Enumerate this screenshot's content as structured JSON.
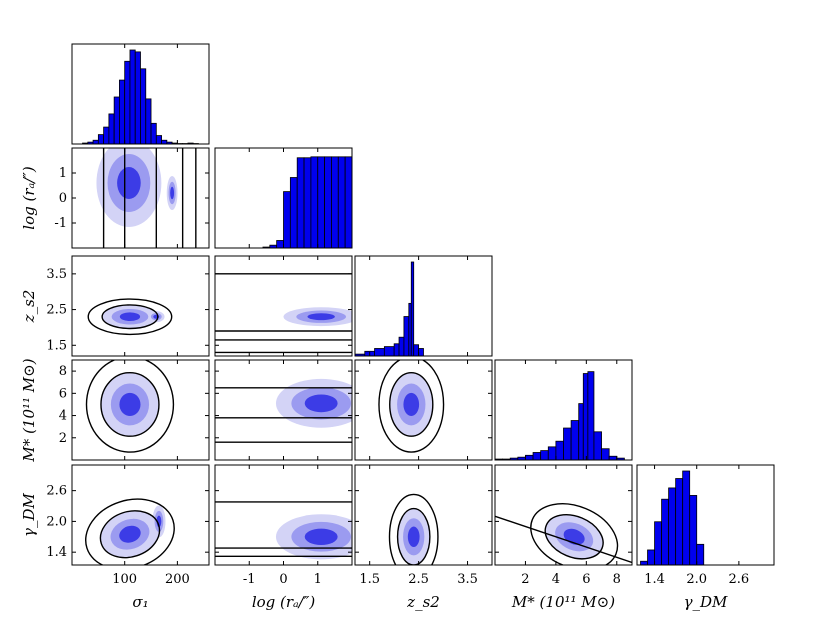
{
  "chart_data": {
    "type": "corner",
    "parameters": [
      {
        "key": "sigma1",
        "label": "σ₁",
        "range": [
          0,
          260
        ],
        "ticks": [
          100,
          200
        ],
        "tick_labels": [
          "100",
          "200"
        ]
      },
      {
        "key": "log_ra",
        "label": "log (rₐ/″)",
        "range": [
          -2.0,
          2.0
        ],
        "ticks": [
          -1,
          0,
          1
        ],
        "tick_labels": [
          "-1",
          "0",
          "1"
        ]
      },
      {
        "key": "zs2",
        "label": "z_s2",
        "range": [
          1.2,
          4.0
        ],
        "ticks": [
          1.5,
          2.5,
          3.5
        ],
        "tick_labels": [
          "1.5",
          "2.5",
          "3.5"
        ]
      },
      {
        "key": "Mstar",
        "label": "M* (10¹¹ M⊙)",
        "range": [
          0,
          9
        ],
        "ticks": [
          2,
          4,
          6,
          8
        ],
        "tick_labels": [
          "2",
          "4",
          "6",
          "8"
        ]
      },
      {
        "key": "gammaDM",
        "label": "γ_DM",
        "range": [
          1.15,
          3.1
        ],
        "ticks": [
          1.4,
          2.0,
          2.6
        ],
        "tick_labels": [
          "1.4",
          "2.0",
          "2.6"
        ]
      }
    ],
    "row_tick_labels": {
      "log_ra": [
        "1",
        "0",
        "-1"
      ],
      "zs2": [
        "3.5",
        "2.5",
        "1.5"
      ],
      "Mstar": [
        "8",
        "6",
        "4",
        "2"
      ],
      "gammaDM": [
        "2.6",
        "2.0",
        "1.4"
      ]
    },
    "x_axis_labels": [
      "σ₁",
      "log (rₐ/″)",
      "z_s2",
      "M* (10¹¹ M⊙)",
      "γ_DM"
    ],
    "y_axis_labels": [
      "log (rₐ/″)",
      "z_s2",
      "M* (10¹¹ M⊙)",
      "γ_DM"
    ],
    "histograms": [
      {
        "param": "sigma1",
        "bin_edges": [
          20,
          30,
          40,
          50,
          60,
          70,
          80,
          90,
          100,
          110,
          120,
          130,
          140,
          150,
          160,
          170,
          180,
          190,
          200,
          210,
          220,
          230,
          240
        ],
        "counts": [
          0.01,
          0.02,
          0.04,
          0.1,
          0.18,
          0.32,
          0.5,
          0.68,
          0.88,
          1.0,
          0.98,
          0.8,
          0.48,
          0.22,
          0.09,
          0.04,
          0.02,
          0.01,
          0.005,
          0.005,
          0.01,
          0.005
        ]
      },
      {
        "param": "log_ra",
        "bin_edges": [
          -0.6,
          -0.4,
          -0.2,
          0.0,
          0.2,
          0.4,
          0.6,
          0.8,
          1.0,
          1.2,
          1.4,
          1.6,
          1.8,
          2.0
        ],
        "counts": [
          0.01,
          0.03,
          0.08,
          0.6,
          0.75,
          0.96,
          0.96,
          0.97,
          0.97,
          0.97,
          0.97,
          0.97,
          0.97
        ]
      },
      {
        "param": "zs2",
        "bin_edges": [
          1.2,
          1.4,
          1.6,
          1.8,
          2.0,
          2.1,
          2.2,
          2.3,
          2.35,
          2.4,
          2.5,
          2.6
        ],
        "counts": [
          0.02,
          0.05,
          0.08,
          0.1,
          0.13,
          0.2,
          0.42,
          0.56,
          1.0,
          0.12,
          0.08
        ]
      },
      {
        "param": "Mstar",
        "bin_edges": [
          0.0,
          0.5,
          1.0,
          1.5,
          2.0,
          2.5,
          3.0,
          3.5,
          4.0,
          4.5,
          5.0,
          5.5,
          5.8,
          6.1,
          6.5,
          7.0,
          7.5,
          8.0,
          8.5
        ],
        "counts": [
          0.01,
          0.01,
          0.02,
          0.03,
          0.05,
          0.08,
          0.1,
          0.14,
          0.2,
          0.34,
          0.42,
          0.6,
          0.92,
          0.94,
          0.3,
          0.12,
          0.04,
          0.02
        ]
      },
      {
        "param": "gammaDM",
        "bin_edges": [
          1.2,
          1.3,
          1.4,
          1.5,
          1.6,
          1.7,
          1.8,
          1.9,
          2.0,
          2.1
        ],
        "counts": [
          0.04,
          0.16,
          0.46,
          0.7,
          0.82,
          0.92,
          1.0,
          0.74,
          0.22
        ]
      }
    ],
    "pairs": [
      {
        "x": "sigma1",
        "y": "log_ra",
        "centers": [
          {
            "x": 108,
            "y": 0.6,
            "sx": 28,
            "sy": 0.8,
            "rho": 0,
            "w": 1
          },
          {
            "x": 190,
            "y": 0.2,
            "sx": 6,
            "sy": 0.4,
            "rho": 0,
            "w": 0.6
          }
        ],
        "lines": [
          [
            [
              60,
              -2
            ],
            [
              60,
              2
            ]
          ],
          [
            [
              100,
              -2
            ],
            [
              100,
              2
            ]
          ],
          [
            [
              160,
              -2
            ],
            [
              160,
              2
            ]
          ],
          [
            [
              210,
              -2
            ],
            [
              210,
              2
            ]
          ],
          [
            [
              235,
              -2
            ],
            [
              235,
              2
            ]
          ]
        ]
      },
      {
        "x": "log_ra",
        "y": "zs2",
        "centers": [
          {
            "x": 1.1,
            "y": 2.3,
            "sx": 0.5,
            "sy": 0.12,
            "rho": 0,
            "w": 1
          }
        ],
        "lines": [
          [
            [
              -2,
              3.5
            ],
            [
              2,
              3.5
            ]
          ],
          [
            [
              -2,
              1.9
            ],
            [
              2,
              1.9
            ]
          ],
          [
            [
              -2,
              1.65
            ],
            [
              2,
              1.65
            ]
          ],
          [
            [
              -2,
              1.3
            ],
            [
              2,
              1.3
            ]
          ]
        ]
      },
      {
        "x": "sigma1",
        "y": "zs2",
        "centers": [
          {
            "x": 110,
            "y": 2.3,
            "sx": 24,
            "sy": 0.15,
            "rho": 0,
            "w": 1
          },
          {
            "x": 160,
            "y": 2.3,
            "sx": 10,
            "sy": 0.1,
            "rho": 0,
            "w": 0.5
          }
        ],
        "lines": []
      },
      {
        "x": "log_ra",
        "y": "Mstar",
        "centers": [
          {
            "x": 1.1,
            "y": 5.1,
            "sx": 0.6,
            "sy": 1.0,
            "rho": 0,
            "w": 1
          }
        ],
        "lines": [
          [
            [
              -2,
              6.5
            ],
            [
              2,
              6.5
            ]
          ],
          [
            [
              -2,
              3.8
            ],
            [
              2,
              3.8
            ]
          ],
          [
            [
              -2,
              1.6
            ],
            [
              2,
              1.6
            ]
          ]
        ]
      },
      {
        "x": "sigma1",
        "y": "Mstar",
        "centers": [
          {
            "x": 110,
            "y": 5.0,
            "sx": 25,
            "sy": 1.3,
            "rho": 0,
            "w": 1
          }
        ],
        "lines": []
      },
      {
        "x": "zs2",
        "y": "Mstar",
        "centers": [
          {
            "x": 2.35,
            "y": 5.0,
            "sx": 0.2,
            "sy": 1.3,
            "rho": 0,
            "w": 1
          }
        ],
        "lines": []
      },
      {
        "x": "sigma1",
        "y": "gammaDM",
        "centers": [
          {
            "x": 110,
            "y": 1.75,
            "sx": 26,
            "sy": 0.2,
            "rho": 0.4,
            "w": 1
          },
          {
            "x": 165,
            "y": 2.0,
            "sx": 8,
            "sy": 0.2,
            "rho": 0,
            "w": 0.5
          }
        ],
        "lines": []
      },
      {
        "x": "log_ra",
        "y": "gammaDM",
        "centers": [
          {
            "x": 1.1,
            "y": 1.7,
            "sx": 0.6,
            "sy": 0.2,
            "rho": 0,
            "w": 1
          }
        ],
        "lines": [
          [
            [
              -2,
              2.38
            ],
            [
              2,
              2.38
            ]
          ],
          [
            [
              -2,
              1.48
            ],
            [
              2,
              1.48
            ]
          ],
          [
            [
              -2,
              1.32
            ],
            [
              2,
              1.32
            ]
          ]
        ]
      },
      {
        "x": "zs2",
        "y": "gammaDM",
        "centers": [
          {
            "x": 2.4,
            "y": 1.7,
            "sx": 0.15,
            "sy": 0.25,
            "rho": 0,
            "w": 1
          }
        ],
        "lines": []
      },
      {
        "x": "Mstar",
        "y": "gammaDM",
        "centers": [
          {
            "x": 5.2,
            "y": 1.7,
            "sx": 0.9,
            "sy": 0.18,
            "rho": -0.5,
            "w": 1
          }
        ],
        "lines": [
          [
            [
              0,
              2.1
            ],
            [
              9,
              1.2
            ]
          ]
        ]
      }
    ],
    "colors": {
      "fill": "#0000ee",
      "contour_levels": [
        "#d3d3f6",
        "#9b9bf0",
        "#3c3ce6"
      ],
      "line": "#000000"
    }
  }
}
